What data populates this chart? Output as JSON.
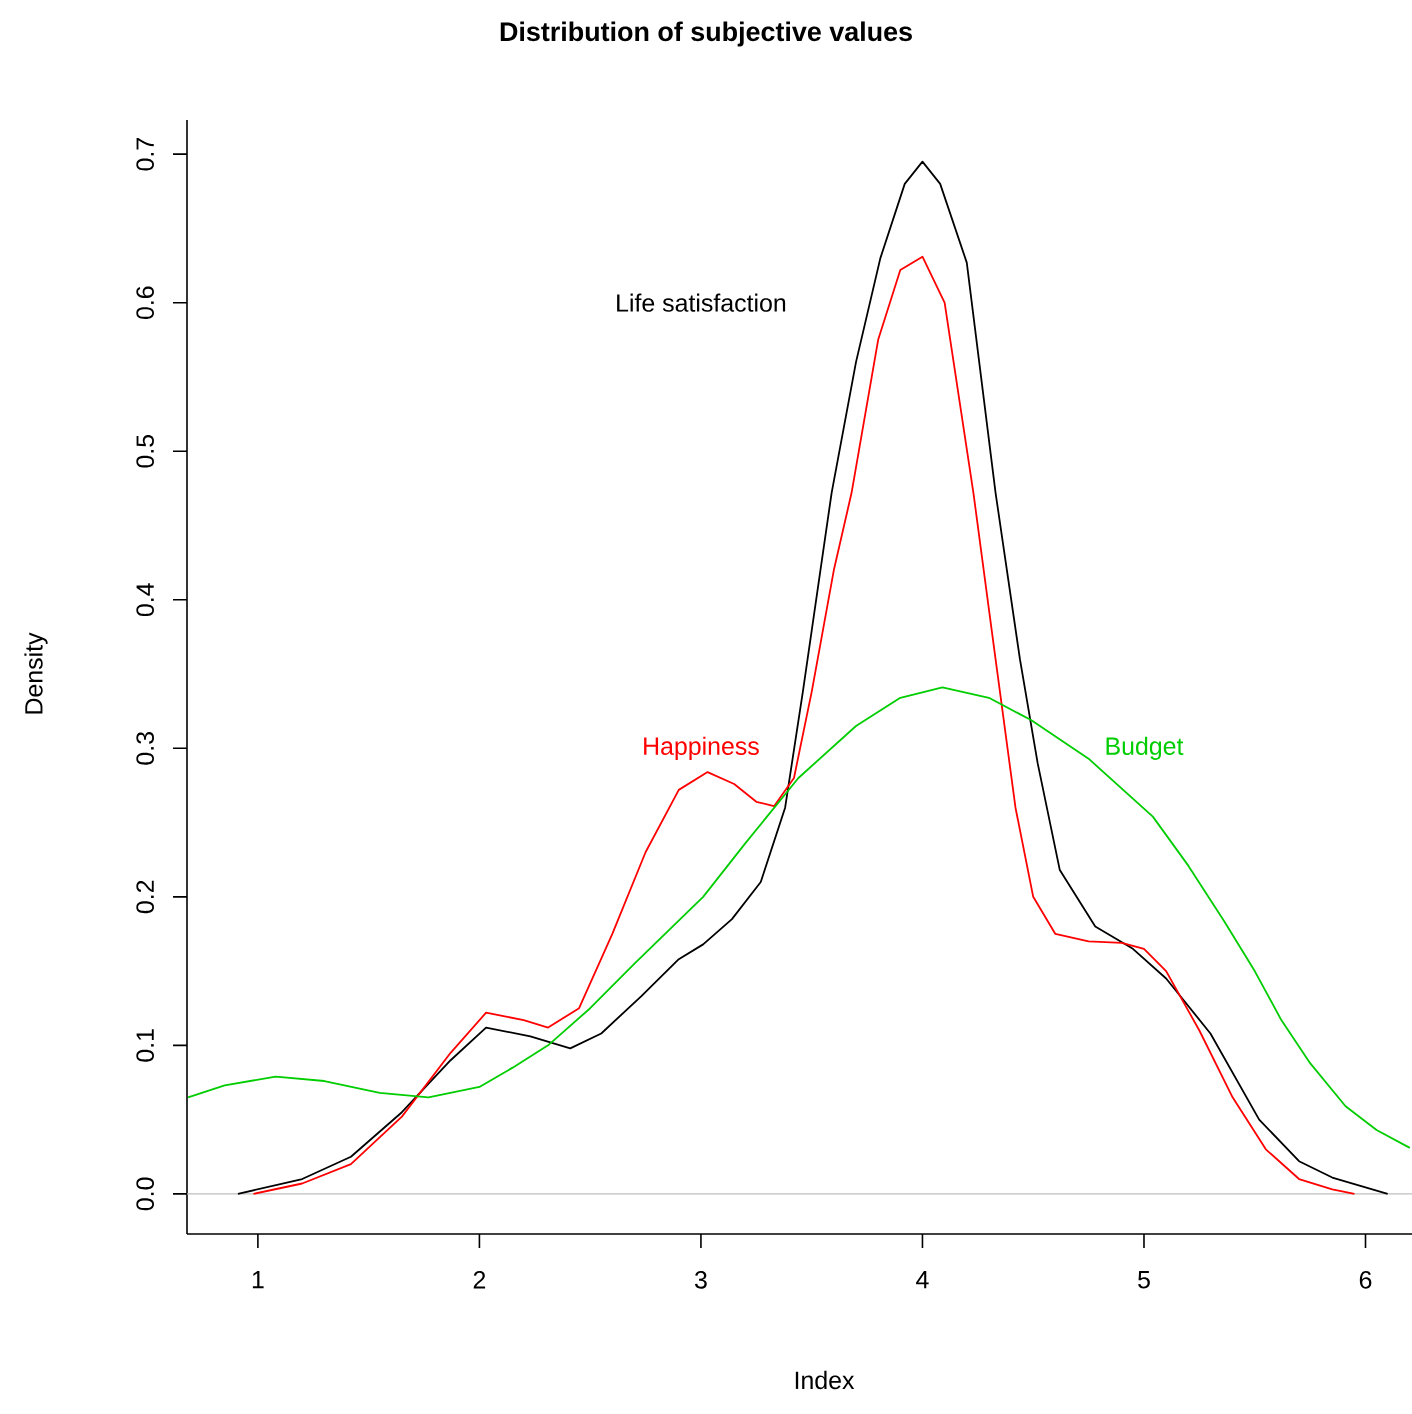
{
  "chart_data": {
    "type": "line",
    "title": "Distribution of subjective values",
    "xlabel": "Index",
    "ylabel": "Density",
    "xlim": [
      0.68,
      6.21
    ],
    "ylim": [
      -0.027,
      0.723
    ],
    "xticks": [
      1,
      2,
      3,
      4,
      5,
      6
    ],
    "yticks": [
      {
        "value": 0,
        "label": "0.0"
      },
      {
        "value": 0.1,
        "label": "0.1"
      },
      {
        "value": 0.2,
        "label": "0.2"
      },
      {
        "value": 0.3,
        "label": "0.3"
      },
      {
        "value": 0.4,
        "label": "0.4"
      },
      {
        "value": 0.5,
        "label": "0.5"
      },
      {
        "value": 0.6,
        "label": "0.6"
      },
      {
        "value": 0.7,
        "label": "0.7"
      }
    ],
    "marker": "none",
    "line_style": "solid",
    "ref_lines": [
      {
        "axis": "y",
        "value": 0,
        "color": "#bebebe"
      }
    ],
    "series": [
      {
        "name": "Life satisfaction",
        "color": "#000000",
        "x": [
          0.91,
          1.2,
          1.42,
          1.65,
          1.87,
          2.03,
          2.23,
          2.41,
          2.55,
          2.73,
          2.9,
          3.01,
          3.14,
          3.27,
          3.38,
          3.46,
          3.59,
          3.7,
          3.81,
          3.92,
          4.0,
          4.08,
          4.2,
          4.33,
          4.44,
          4.52,
          4.62,
          4.78,
          4.95,
          5.1,
          5.3,
          5.52,
          5.7,
          5.85,
          6.1
        ],
        "values": [
          0.0,
          0.01,
          0.025,
          0.055,
          0.09,
          0.112,
          0.106,
          0.098,
          0.108,
          0.133,
          0.158,
          0.168,
          0.185,
          0.21,
          0.26,
          0.338,
          0.472,
          0.56,
          0.63,
          0.68,
          0.695,
          0.68,
          0.627,
          0.472,
          0.36,
          0.29,
          0.218,
          0.18,
          0.165,
          0.145,
          0.108,
          0.05,
          0.022,
          0.011,
          0.0
        ]
      },
      {
        "name": "Happiness",
        "color": "#ff0000",
        "x": [
          0.98,
          1.2,
          1.42,
          1.65,
          1.87,
          2.03,
          2.2,
          2.31,
          2.45,
          2.6,
          2.75,
          2.9,
          3.03,
          3.15,
          3.25,
          3.33,
          3.42,
          3.5,
          3.6,
          3.68,
          3.8,
          3.9,
          4.0,
          4.1,
          4.23,
          4.33,
          4.42,
          4.5,
          4.6,
          4.75,
          4.9,
          5.0,
          5.1,
          5.25,
          5.4,
          5.55,
          5.7,
          5.85,
          5.95
        ],
        "values": [
          0.0,
          0.007,
          0.02,
          0.052,
          0.095,
          0.122,
          0.117,
          0.112,
          0.125,
          0.175,
          0.23,
          0.272,
          0.284,
          0.276,
          0.264,
          0.261,
          0.28,
          0.338,
          0.42,
          0.472,
          0.575,
          0.622,
          0.631,
          0.6,
          0.472,
          0.36,
          0.26,
          0.2,
          0.175,
          0.17,
          0.169,
          0.165,
          0.15,
          0.11,
          0.065,
          0.03,
          0.01,
          0.003,
          0.0
        ]
      },
      {
        "name": "Budget",
        "color": "#00cd00",
        "x": [
          0.685,
          0.85,
          1.08,
          1.3,
          1.55,
          1.77,
          2.0,
          2.15,
          2.31,
          2.5,
          2.7,
          3.01,
          3.2,
          3.44,
          3.7,
          3.9,
          4.09,
          4.3,
          4.49,
          4.75,
          5.04,
          5.2,
          5.36,
          5.5,
          5.62,
          5.75,
          5.91,
          6.05,
          6.2
        ],
        "values": [
          0.065,
          0.073,
          0.079,
          0.076,
          0.068,
          0.065,
          0.072,
          0.085,
          0.1,
          0.125,
          0.155,
          0.2,
          0.236,
          0.28,
          0.315,
          0.334,
          0.341,
          0.334,
          0.319,
          0.293,
          0.254,
          0.221,
          0.184,
          0.15,
          0.117,
          0.088,
          0.059,
          0.043,
          0.031
        ]
      }
    ]
  }
}
